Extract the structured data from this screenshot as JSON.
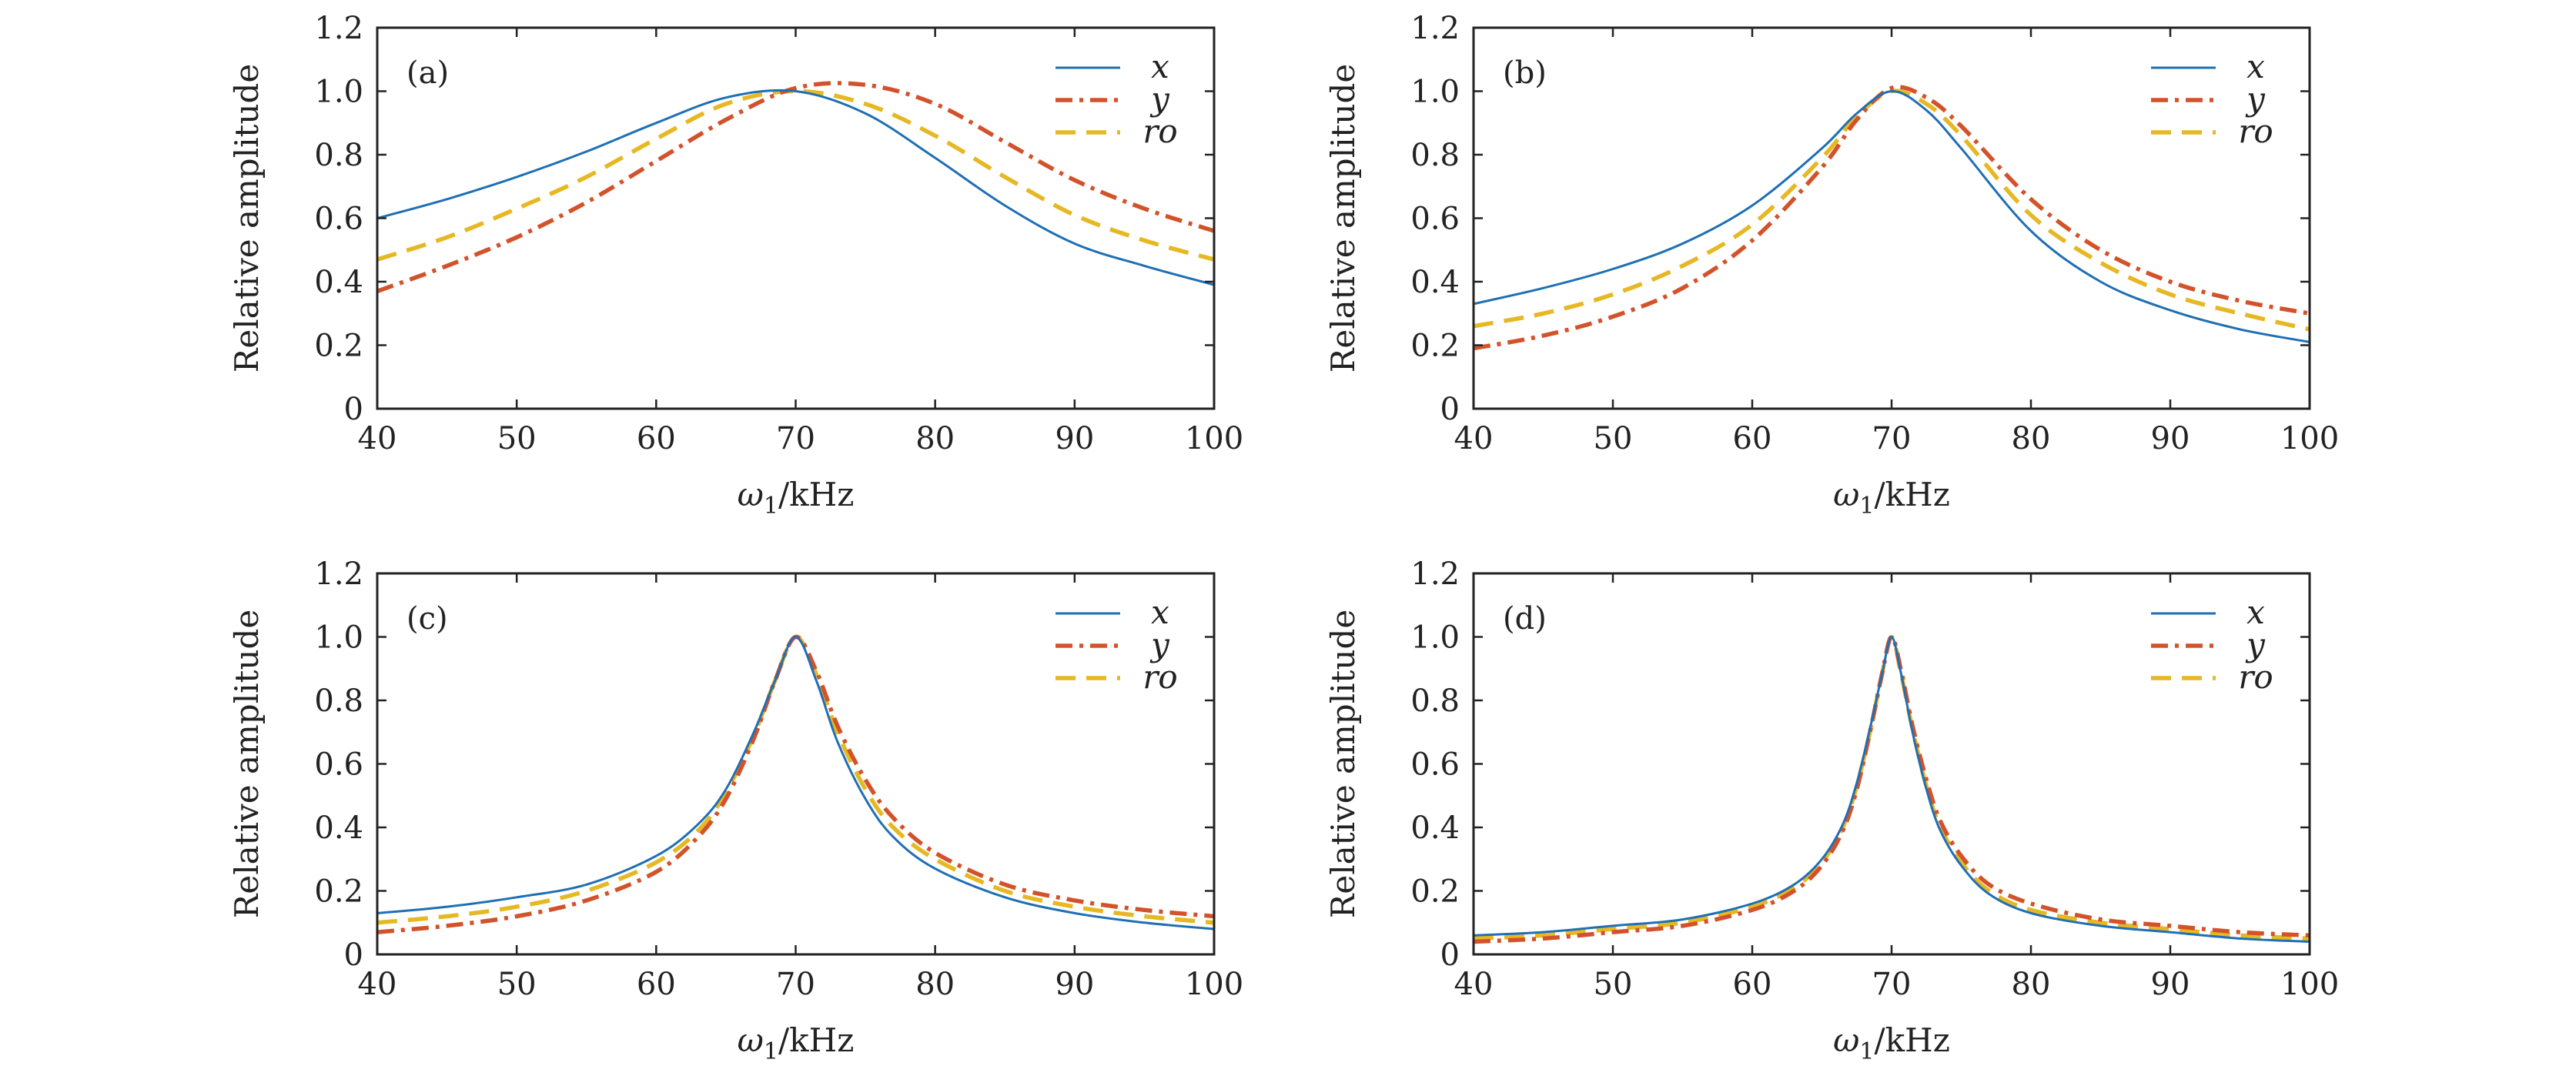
{
  "colors": {
    "x": "#1f6fb4",
    "y": "#d2532b",
    "ro": "#e6b823"
  },
  "chart_data": [
    {
      "type": "line",
      "panel_label": "(a)",
      "xlabel": "ω1/kHz",
      "ylabel": "Relative amplitude",
      "xlim": [
        40,
        100
      ],
      "ylim": [
        0,
        1.2
      ],
      "xticks": [
        "40",
        "50",
        "60",
        "70",
        "80",
        "90",
        "100"
      ],
      "yticks": [
        "0",
        "0.2",
        "0.4",
        "0.6",
        "0.8",
        "1.0",
        "1.2"
      ],
      "x": [
        40,
        45,
        50,
        55,
        60,
        65,
        70,
        75,
        80,
        85,
        90,
        95,
        100
      ],
      "series": [
        {
          "name": "x",
          "style": "solid",
          "values": [
            0.6,
            0.66,
            0.73,
            0.81,
            0.9,
            0.98,
            1.0,
            0.93,
            0.79,
            0.64,
            0.52,
            0.45,
            0.39
          ]
        },
        {
          "name": "y",
          "style": "dashdot",
          "values": [
            0.37,
            0.45,
            0.54,
            0.65,
            0.78,
            0.91,
            1.01,
            1.02,
            0.96,
            0.84,
            0.72,
            0.63,
            0.56
          ]
        },
        {
          "name": "ro",
          "style": "dashed",
          "values": [
            0.47,
            0.54,
            0.63,
            0.73,
            0.85,
            0.96,
            1.0,
            0.96,
            0.86,
            0.73,
            0.61,
            0.53,
            0.47
          ]
        }
      ]
    },
    {
      "type": "line",
      "panel_label": "(b)",
      "xlabel": "ω1/kHz",
      "ylabel": "Relative amplitude",
      "xlim": [
        40,
        100
      ],
      "ylim": [
        0,
        1.2
      ],
      "xticks": [
        "40",
        "50",
        "60",
        "70",
        "80",
        "90",
        "100"
      ],
      "yticks": [
        "0",
        "0.2",
        "0.4",
        "0.6",
        "0.8",
        "1.0",
        "1.2"
      ],
      "x": [
        40,
        45,
        50,
        55,
        60,
        65,
        67.5,
        70,
        72.5,
        75,
        80,
        85,
        90,
        95,
        100
      ],
      "series": [
        {
          "name": "x",
          "style": "solid",
          "values": [
            0.33,
            0.38,
            0.44,
            0.52,
            0.64,
            0.82,
            0.93,
            1.0,
            0.94,
            0.82,
            0.56,
            0.4,
            0.31,
            0.25,
            0.21
          ]
        },
        {
          "name": "y",
          "style": "dashdot",
          "values": [
            0.19,
            0.23,
            0.29,
            0.38,
            0.53,
            0.76,
            0.91,
            1.01,
            0.98,
            0.89,
            0.66,
            0.5,
            0.4,
            0.34,
            0.3
          ]
        },
        {
          "name": "ro",
          "style": "dashed",
          "values": [
            0.26,
            0.3,
            0.36,
            0.45,
            0.58,
            0.79,
            0.92,
            1.0,
            0.96,
            0.86,
            0.61,
            0.46,
            0.36,
            0.3,
            0.25
          ]
        }
      ]
    },
    {
      "type": "line",
      "panel_label": "(c)",
      "xlabel": "ω1/kHz",
      "ylabel": "Relative amplitude",
      "xlim": [
        40,
        100
      ],
      "ylim": [
        0,
        1.2
      ],
      "xticks": [
        "40",
        "50",
        "60",
        "70",
        "80",
        "90",
        "100"
      ],
      "yticks": [
        "0",
        "0.2",
        "0.4",
        "0.6",
        "0.8",
        "1.0",
        "1.2"
      ],
      "x": [
        40,
        45,
        50,
        55,
        60,
        63,
        65,
        67,
        68.5,
        70,
        71.5,
        73,
        75,
        77,
        80,
        85,
        90,
        95,
        100
      ],
      "series": [
        {
          "name": "x",
          "style": "solid",
          "values": [
            0.13,
            0.15,
            0.18,
            0.22,
            0.31,
            0.41,
            0.52,
            0.7,
            0.86,
            1.0,
            0.86,
            0.67,
            0.49,
            0.37,
            0.27,
            0.18,
            0.13,
            0.1,
            0.08
          ]
        },
        {
          "name": "y",
          "style": "dashdot",
          "values": [
            0.07,
            0.09,
            0.12,
            0.17,
            0.26,
            0.37,
            0.49,
            0.68,
            0.86,
            1.0,
            0.89,
            0.72,
            0.55,
            0.43,
            0.32,
            0.22,
            0.17,
            0.14,
            0.12
          ]
        },
        {
          "name": "ro",
          "style": "dashed",
          "values": [
            0.1,
            0.12,
            0.15,
            0.2,
            0.29,
            0.39,
            0.51,
            0.69,
            0.86,
            1.0,
            0.88,
            0.7,
            0.52,
            0.4,
            0.3,
            0.2,
            0.15,
            0.12,
            0.1
          ]
        }
      ]
    },
    {
      "type": "line",
      "panel_label": "(d)",
      "xlabel": "ω1/kHz",
      "ylabel": "Relative amplitude",
      "xlim": [
        40,
        100
      ],
      "ylim": [
        0,
        1.2
      ],
      "xticks": [
        "40",
        "50",
        "60",
        "70",
        "80",
        "90",
        "100"
      ],
      "yticks": [
        "0",
        "0.2",
        "0.4",
        "0.6",
        "0.8",
        "1.0",
        "1.2"
      ],
      "x": [
        40,
        45,
        50,
        55,
        60,
        63,
        65,
        66.5,
        67.5,
        68.5,
        69.3,
        70,
        70.7,
        71.5,
        72.5,
        73.5,
        75,
        77,
        80,
        85,
        90,
        95,
        100
      ],
      "series": [
        {
          "name": "x",
          "style": "solid",
          "values": [
            0.06,
            0.07,
            0.09,
            0.11,
            0.16,
            0.22,
            0.3,
            0.41,
            0.54,
            0.72,
            0.88,
            1.0,
            0.88,
            0.7,
            0.52,
            0.39,
            0.28,
            0.19,
            0.13,
            0.09,
            0.07,
            0.05,
            0.04
          ]
        },
        {
          "name": "y",
          "style": "dashdot",
          "values": [
            0.04,
            0.05,
            0.07,
            0.09,
            0.14,
            0.2,
            0.28,
            0.39,
            0.52,
            0.71,
            0.88,
            1.0,
            0.89,
            0.72,
            0.55,
            0.42,
            0.31,
            0.22,
            0.16,
            0.11,
            0.09,
            0.07,
            0.06
          ]
        },
        {
          "name": "ro",
          "style": "dashed",
          "values": [
            0.05,
            0.06,
            0.08,
            0.1,
            0.15,
            0.21,
            0.29,
            0.4,
            0.53,
            0.71,
            0.88,
            1.0,
            0.88,
            0.71,
            0.53,
            0.4,
            0.29,
            0.2,
            0.14,
            0.1,
            0.08,
            0.06,
            0.05
          ]
        }
      ]
    }
  ]
}
